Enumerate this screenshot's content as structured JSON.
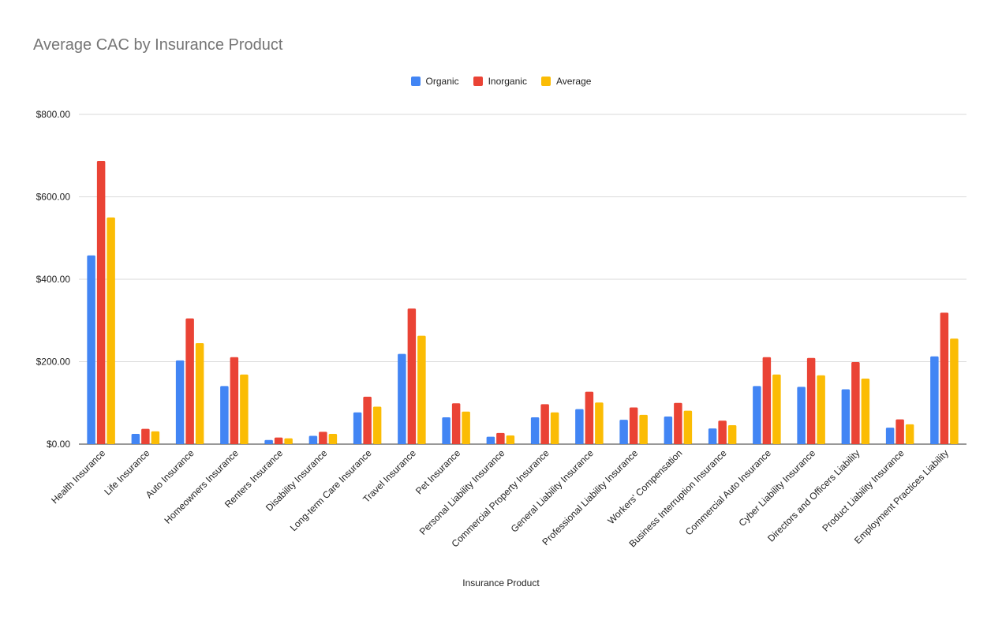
{
  "chart_data": {
    "type": "bar",
    "title": "Average CAC by Insurance Product",
    "xlabel": "Insurance Product",
    "ylabel": "",
    "ylim": [
      0,
      800
    ],
    "yticks": [
      0,
      200,
      400,
      600,
      800
    ],
    "ytick_labels": [
      "$0.00",
      "$200.00",
      "$400.00",
      "$600.00",
      "$800.00"
    ],
    "legend_position": "top-center",
    "grid": true,
    "categories": [
      "Health Insurance",
      "Life Insurance",
      "Auto Insurance",
      "Homeowners Insurance",
      "Renters Insurance",
      "Disability Insurance",
      "Long-term Care Insurance",
      "Travel Insurance",
      "Pet Insurance",
      "Personal Liability Insurance",
      "Commercial Property Insurance",
      "General Liability Insurance",
      "Professional Liability Insurance",
      "Workers' Compensation",
      "Business Interruption Insurance",
      "Commercial Auto Insurance",
      "Cyber Liability Insurance",
      "Directors and Officers Liability",
      "Product Liability Insurance",
      "Employment Practices Liability"
    ],
    "series": [
      {
        "name": "Organic",
        "color": "#4285F4",
        "values": [
          458,
          25,
          203,
          141,
          10,
          20,
          77,
          219,
          65,
          18,
          65,
          85,
          59,
          67,
          38,
          141,
          139,
          133,
          40,
          213
        ]
      },
      {
        "name": "Inorganic",
        "color": "#EA4335",
        "values": [
          687,
          37,
          305,
          211,
          16,
          30,
          115,
          329,
          99,
          27,
          97,
          127,
          89,
          100,
          57,
          211,
          209,
          199,
          60,
          319
        ]
      },
      {
        "name": "Average",
        "color": "#FBBC04",
        "values": [
          550,
          31,
          245,
          169,
          14,
          25,
          91,
          263,
          79,
          21,
          77,
          101,
          71,
          81,
          46,
          169,
          167,
          159,
          48,
          256
        ]
      }
    ]
  }
}
